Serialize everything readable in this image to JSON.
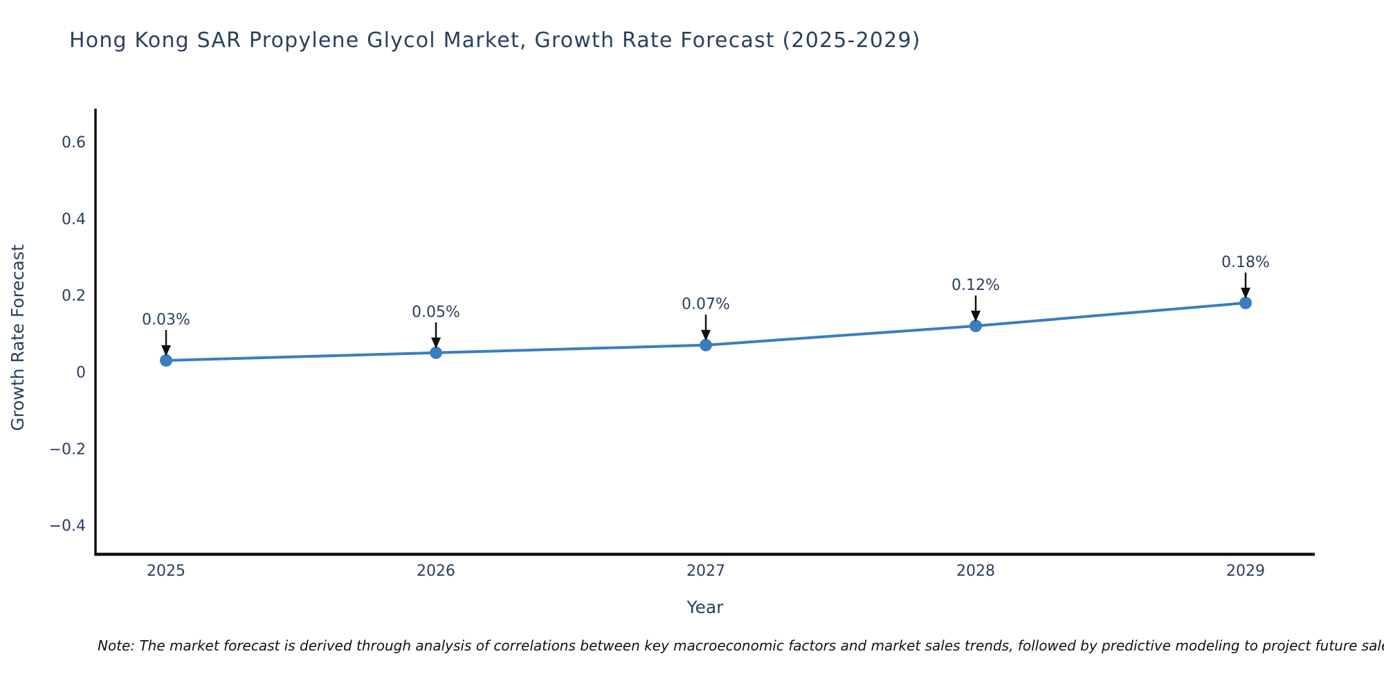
{
  "page": {
    "background_color": "#ffffff"
  },
  "chart_data": {
    "type": "line",
    "title": "Hong Kong SAR Propylene Glycol Market, Growth Rate Forecast (2025-2029)",
    "xlabel": "Year",
    "ylabel": "Growth Rate Forecast",
    "x": [
      2025,
      2026,
      2027,
      2028,
      2029
    ],
    "y": [
      0.03,
      0.05,
      0.07,
      0.12,
      0.18
    ],
    "point_labels": [
      "0.03%",
      "0.05%",
      "0.07%",
      "0.12%",
      "0.18%"
    ],
    "xtick_labels": [
      "2025",
      "2026",
      "2027",
      "2028",
      "2029"
    ],
    "yticks": [
      0.6,
      0.4,
      0.2,
      0,
      -0.2,
      -0.4
    ],
    "ytick_labels": [
      "0.6",
      "0.4",
      "0.2",
      "0",
      "−0.2",
      "−0.4"
    ],
    "ylim": [
      -0.476,
      0.681
    ],
    "grid": false,
    "legend_position": "none",
    "line_color": "#3a7ebf",
    "marker_color": "#3a7ebf",
    "axis_color": "#111111",
    "text_color": "#2a3f5f",
    "arrow_color": "#111111"
  },
  "note": {
    "text": "Note: The market forecast is derived through analysis of correlations between key macroeconomic factors and market sales trends, followed by predictive modeling to project future sales."
  }
}
